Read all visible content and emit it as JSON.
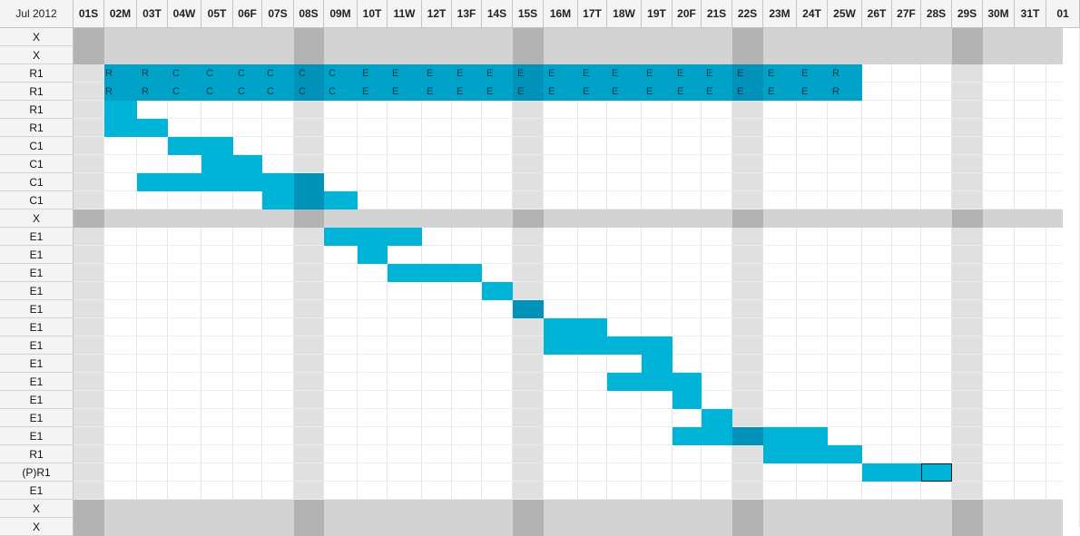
{
  "month_label": "Jul 2012",
  "days": [
    "01S",
    "02M",
    "03T",
    "04W",
    "05T",
    "06F",
    "07S",
    "08S",
    "09M",
    "10T",
    "11W",
    "12T",
    "13F",
    "14S",
    "15S",
    "16M",
    "17T",
    "18W",
    "19T",
    "20F",
    "21S",
    "22S",
    "23M",
    "24T",
    "25W",
    "26T",
    "27F",
    "28S",
    "29S",
    "30M",
    "31T",
    "01"
  ],
  "weekend_days": [
    "01S",
    "08S",
    "15S",
    "22S",
    "29S"
  ],
  "rows": [
    {
      "label": "X",
      "type": "x"
    },
    {
      "label": "X",
      "type": "x"
    },
    {
      "label": "R1",
      "bar_from": "02M",
      "bar_to": "25W",
      "style": "dark",
      "codes": [
        "R",
        "R",
        "C",
        "C",
        "C",
        "C",
        "C",
        "C",
        "E",
        "E",
        "E",
        "E",
        "E",
        "E",
        "E",
        "E",
        "E",
        "E",
        "E",
        "E",
        "E",
        "E",
        "E",
        "R"
      ]
    },
    {
      "label": "R1",
      "bar_from": "02M",
      "bar_to": "25W",
      "style": "dark",
      "codes": [
        "R",
        "R",
        "C",
        "C",
        "C",
        "C",
        "C",
        "C",
        "E",
        "E",
        "E",
        "E",
        "E",
        "E",
        "E",
        "E",
        "E",
        "E",
        "E",
        "E",
        "E",
        "E",
        "E",
        "R"
      ]
    },
    {
      "label": "R1",
      "bar_from": "02M",
      "bar_to": "02M"
    },
    {
      "label": "R1",
      "bar_from": "02M",
      "bar_to": "03T"
    },
    {
      "label": "C1",
      "bar_from": "04W",
      "bar_to": "05T"
    },
    {
      "label": "C1",
      "bar_from": "05T",
      "bar_to": "06F"
    },
    {
      "label": "C1",
      "bar_from": "03T",
      "bar_to": "08S"
    },
    {
      "label": "C1",
      "bar_from": "07S",
      "bar_to": "09M"
    },
    {
      "label": "X",
      "type": "x"
    },
    {
      "label": "E1",
      "bar_from": "09M",
      "bar_to": "11W"
    },
    {
      "label": "E1",
      "bar_from": "10T",
      "bar_to": "10T"
    },
    {
      "label": "E1",
      "bar_from": "11W",
      "bar_to": "13F"
    },
    {
      "label": "E1",
      "bar_from": "14S",
      "bar_to": "14S"
    },
    {
      "label": "E1",
      "bar_from": "15S",
      "bar_to": "15S"
    },
    {
      "label": "E1",
      "bar_from": "16M",
      "bar_to": "17T"
    },
    {
      "label": "E1",
      "bar_from": "16M",
      "bar_to": "19T"
    },
    {
      "label": "E1",
      "bar_from": "19T",
      "bar_to": "19T"
    },
    {
      "label": "E1",
      "bar_from": "18W",
      "bar_to": "20F"
    },
    {
      "label": "E1",
      "bar_from": "20F",
      "bar_to": "20F"
    },
    {
      "label": "E1",
      "bar_from": "21S",
      "bar_to": "21S"
    },
    {
      "label": "E1",
      "bar_from": "20F",
      "bar_to": "24T"
    },
    {
      "label": "R1",
      "bar_from": "23M",
      "bar_to": "25W"
    },
    {
      "label": "(P)R1",
      "bar_from": "26T",
      "bar_to": "28S",
      "selected_day": "28S"
    },
    {
      "label": "E1"
    },
    {
      "label": "X",
      "type": "x"
    },
    {
      "label": "X",
      "type": "x"
    }
  ],
  "colors": {
    "bar": "#00b4d8",
    "bar_dark": "#00a2c8",
    "overlap": "#0092b8",
    "weekend": "#e0e0e0",
    "blocked_row": "#d3d3d3",
    "blocked_weekend": "#b3b3b3"
  },
  "icons": []
}
